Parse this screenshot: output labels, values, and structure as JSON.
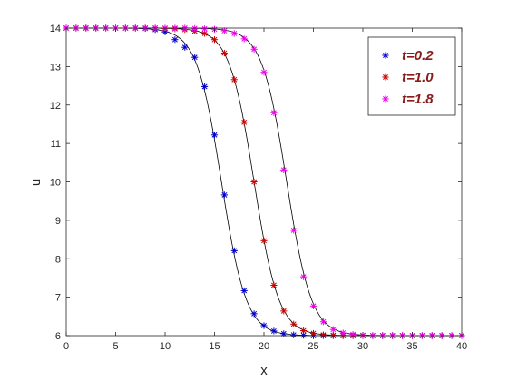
{
  "chart_data": {
    "type": "scatter",
    "title": "",
    "xlabel": "x",
    "ylabel": "u",
    "xlim": [
      0,
      40
    ],
    "ylim": [
      6,
      14
    ],
    "x_ticks": [
      0,
      5,
      10,
      15,
      20,
      25,
      30,
      35,
      40
    ],
    "y_ticks": [
      6,
      7,
      8,
      9,
      10,
      11,
      12,
      13,
      14
    ],
    "grid": false,
    "legend_position": "top-right",
    "x": [
      0,
      1,
      2,
      3,
      4,
      5,
      6,
      7,
      8,
      9,
      10,
      11,
      12,
      13,
      14,
      15,
      16,
      17,
      18,
      19,
      20,
      21,
      22,
      23,
      24,
      25,
      26,
      27,
      28,
      29,
      30,
      31,
      32,
      33,
      34,
      35,
      36,
      37,
      38,
      39,
      40
    ],
    "series": [
      {
        "name": "t=0.2",
        "color": "#0000cc",
        "marker": "asterisk",
        "values": [
          14.0,
          14.0,
          14.0,
          14.0,
          14.0,
          14.0,
          14.0,
          14.0,
          13.99,
          13.96,
          13.9,
          13.7,
          13.5,
          13.24,
          12.48,
          11.22,
          9.66,
          8.21,
          7.17,
          6.57,
          6.26,
          6.12,
          6.05,
          6.02,
          6.01,
          6.0,
          6.0,
          6.0,
          6.0,
          6.0,
          6.0,
          6.0,
          6.0,
          6.0,
          6.0,
          6.0,
          6.0,
          6.0,
          6.0,
          6.0,
          6.0
        ]
      },
      {
        "name": "t=1.0",
        "color": "#cc0000",
        "marker": "asterisk",
        "values": [
          14.0,
          14.0,
          14.0,
          14.0,
          14.0,
          14.0,
          14.0,
          14.0,
          14.0,
          14.0,
          13.99,
          13.98,
          13.96,
          13.92,
          13.86,
          13.7,
          13.35,
          12.66,
          11.55,
          10.0,
          8.47,
          7.31,
          6.64,
          6.3,
          6.13,
          6.06,
          6.02,
          6.01,
          6.0,
          6.0,
          6.0,
          6.0,
          6.0,
          6.0,
          6.0,
          6.0,
          6.0,
          6.0,
          6.0,
          6.0,
          6.0
        ]
      },
      {
        "name": "t=1.8",
        "color": "#ee00ee",
        "marker": "asterisk",
        "values": [
          14.0,
          14.0,
          14.0,
          14.0,
          14.0,
          14.0,
          14.0,
          14.0,
          14.0,
          14.0,
          14.0,
          14.0,
          14.0,
          13.99,
          13.98,
          13.97,
          13.93,
          13.86,
          13.72,
          13.45,
          12.85,
          11.8,
          10.31,
          8.74,
          7.53,
          6.77,
          6.36,
          6.16,
          6.07,
          6.03,
          6.01,
          6.0,
          6.0,
          6.0,
          6.0,
          6.0,
          6.0,
          6.0,
          6.0,
          6.0,
          6.0
        ]
      }
    ],
    "fit_curves": {
      "color": "#000000",
      "centers": [
        15.7,
        19.0,
        22.3
      ],
      "width": 1.25,
      "low": 6,
      "high": 14
    }
  }
}
